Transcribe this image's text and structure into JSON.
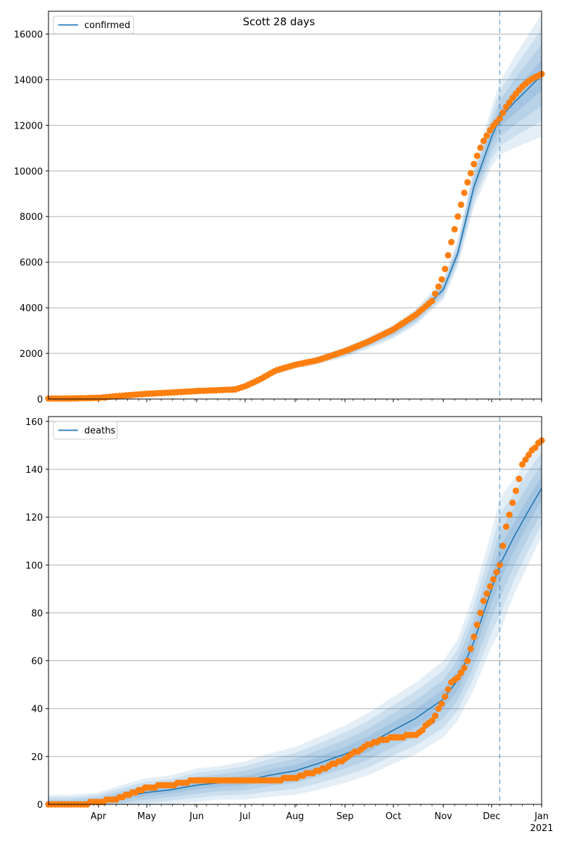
{
  "figure": {
    "title": "Scott 28 days"
  },
  "colors": {
    "model_line": "#1f77b4",
    "observed_points": "#ff7f0e",
    "band": "#1f77b4",
    "grid": "#b0b0b0",
    "forecast_line": "#1f77b4"
  },
  "chart_data": [
    {
      "type": "line",
      "name": "confirmed-panel",
      "legend": [
        "confirmed"
      ],
      "legend_position": "top-left",
      "grid": "y",
      "xlabel": "",
      "ylabel": "",
      "x_range": [
        "2020-03-01",
        "2021-01-01"
      ],
      "ylim": [
        0,
        17000
      ],
      "y_ticks": [
        0,
        2000,
        4000,
        6000,
        8000,
        10000,
        12000,
        14000,
        16000
      ],
      "y_tick_labels": [
        "0",
        "2000",
        "4000",
        "6000",
        "8000",
        "10000",
        "12000",
        "14000",
        "16000"
      ],
      "x_ticks": [
        "2020-04-01",
        "2020-05-01",
        "2020-06-01",
        "2020-07-01",
        "2020-08-01",
        "2020-09-01",
        "2020-10-01",
        "2020-11-01",
        "2020-12-01",
        "2021-01-01"
      ],
      "x_tick_labels": [],
      "forecast_start": "2020-12-06",
      "series": [
        {
          "name": "confirmed",
          "kind": "model",
          "x": [
            "2020-03-01",
            "2020-03-15",
            "2020-04-01",
            "2020-04-15",
            "2020-05-01",
            "2020-05-15",
            "2020-06-01",
            "2020-06-15",
            "2020-07-01",
            "2020-07-15",
            "2020-08-01",
            "2020-08-15",
            "2020-09-01",
            "2020-09-15",
            "2020-10-01",
            "2020-10-15",
            "2020-11-01",
            "2020-11-10",
            "2020-11-20",
            "2020-12-01",
            "2020-12-06",
            "2020-12-15",
            "2020-12-25",
            "2021-01-01"
          ],
          "y": [
            20,
            25,
            50,
            160,
            240,
            300,
            360,
            400,
            580,
            1100,
            1480,
            1700,
            2050,
            2450,
            2950,
            3600,
            4800,
            6400,
            9300,
            11500,
            12300,
            13000,
            13700,
            14200
          ],
          "band_halfwidth": [
            20,
            20,
            30,
            40,
            50,
            60,
            60,
            70,
            80,
            120,
            150,
            180,
            220,
            260,
            300,
            360,
            450,
            600,
            900,
            1300,
            1600,
            2000,
            2400,
            2700
          ]
        },
        {
          "name": "observed",
          "kind": "points",
          "x": [
            "2020-03-01",
            "2020-03-15",
            "2020-04-01",
            "2020-04-10",
            "2020-04-20",
            "2020-05-01",
            "2020-05-15",
            "2020-06-01",
            "2020-06-15",
            "2020-06-25",
            "2020-07-01",
            "2020-07-10",
            "2020-07-20",
            "2020-08-01",
            "2020-08-15",
            "2020-09-01",
            "2020-09-15",
            "2020-10-01",
            "2020-10-15",
            "2020-10-25",
            "2020-11-01",
            "2020-11-05",
            "2020-11-10",
            "2020-11-15",
            "2020-11-20",
            "2020-11-25",
            "2020-12-01",
            "2020-12-06",
            "2020-12-10",
            "2020-12-15",
            "2020-12-20",
            "2020-12-25",
            "2021-01-01"
          ],
          "y": [
            20,
            25,
            50,
            110,
            170,
            230,
            280,
            350,
            390,
            420,
            560,
            850,
            1250,
            1500,
            1700,
            2100,
            2500,
            3050,
            3700,
            4300,
            5400,
            6600,
            8000,
            9300,
            10300,
            11200,
            11900,
            12300,
            12800,
            13300,
            13700,
            14000,
            14250
          ]
        }
      ]
    },
    {
      "type": "line",
      "name": "deaths-panel",
      "legend": [
        "deaths"
      ],
      "legend_position": "top-left",
      "grid": "y",
      "xlabel": "",
      "ylabel": "",
      "x_range": [
        "2020-03-01",
        "2021-01-01"
      ],
      "ylim": [
        0,
        162
      ],
      "y_ticks": [
        0,
        20,
        40,
        60,
        80,
        100,
        120,
        140,
        160
      ],
      "y_tick_labels": [
        "0",
        "20",
        "40",
        "60",
        "80",
        "100",
        "120",
        "140",
        "160"
      ],
      "x_ticks": [
        "2020-04-01",
        "2020-05-01",
        "2020-06-01",
        "2020-07-01",
        "2020-08-01",
        "2020-09-01",
        "2020-10-01",
        "2020-11-01",
        "2020-12-01",
        "2021-01-01"
      ],
      "x_tick_labels": [
        "Apr",
        "May",
        "Jun",
        "Jul",
        "Aug",
        "Sep",
        "Oct",
        "Nov",
        "Dec",
        "Jan"
      ],
      "x_year_label": "2021",
      "forecast_start": "2020-12-06",
      "series": [
        {
          "name": "deaths",
          "kind": "model",
          "x": [
            "2020-03-01",
            "2020-03-15",
            "2020-04-01",
            "2020-04-15",
            "2020-05-01",
            "2020-05-15",
            "2020-06-01",
            "2020-06-15",
            "2020-07-01",
            "2020-07-15",
            "2020-08-01",
            "2020-08-15",
            "2020-09-01",
            "2020-09-15",
            "2020-10-01",
            "2020-10-15",
            "2020-11-01",
            "2020-11-10",
            "2020-11-20",
            "2020-12-01",
            "2020-12-06",
            "2020-12-15",
            "2020-12-25",
            "2021-01-01"
          ],
          "y": [
            0,
            0,
            1,
            3,
            5,
            6,
            8,
            9,
            10,
            12,
            14,
            17,
            21,
            25,
            31,
            36,
            44,
            52,
            68,
            90,
            100,
            112,
            124,
            132
          ],
          "band_halfwidth": [
            4,
            4,
            4,
            5,
            6,
            6,
            7,
            7,
            8,
            9,
            10,
            11,
            12,
            13,
            14,
            15,
            16,
            17,
            20,
            24,
            28,
            24,
            22,
            20
          ]
        },
        {
          "name": "observed",
          "kind": "points",
          "x": [
            "2020-03-01",
            "2020-03-20",
            "2020-04-01",
            "2020-04-10",
            "2020-04-20",
            "2020-05-01",
            "2020-05-15",
            "2020-06-01",
            "2020-06-15",
            "2020-07-01",
            "2020-07-15",
            "2020-08-01",
            "2020-08-15",
            "2020-09-01",
            "2020-09-15",
            "2020-10-01",
            "2020-10-15",
            "2020-10-25",
            "2020-11-01",
            "2020-11-05",
            "2020-11-10",
            "2020-11-15",
            "2020-11-20",
            "2020-11-25",
            "2020-12-01",
            "2020-12-06",
            "2020-12-10",
            "2020-12-15",
            "2020-12-20",
            "2020-12-25",
            "2021-01-01"
          ],
          "y": [
            0,
            0,
            1,
            2,
            4,
            7,
            8,
            10,
            10,
            10,
            10,
            11,
            14,
            19,
            25,
            28,
            29,
            35,
            43,
            50,
            53,
            58,
            70,
            83,
            92,
            100,
            116,
            128,
            142,
            147,
            152
          ]
        }
      ]
    }
  ]
}
